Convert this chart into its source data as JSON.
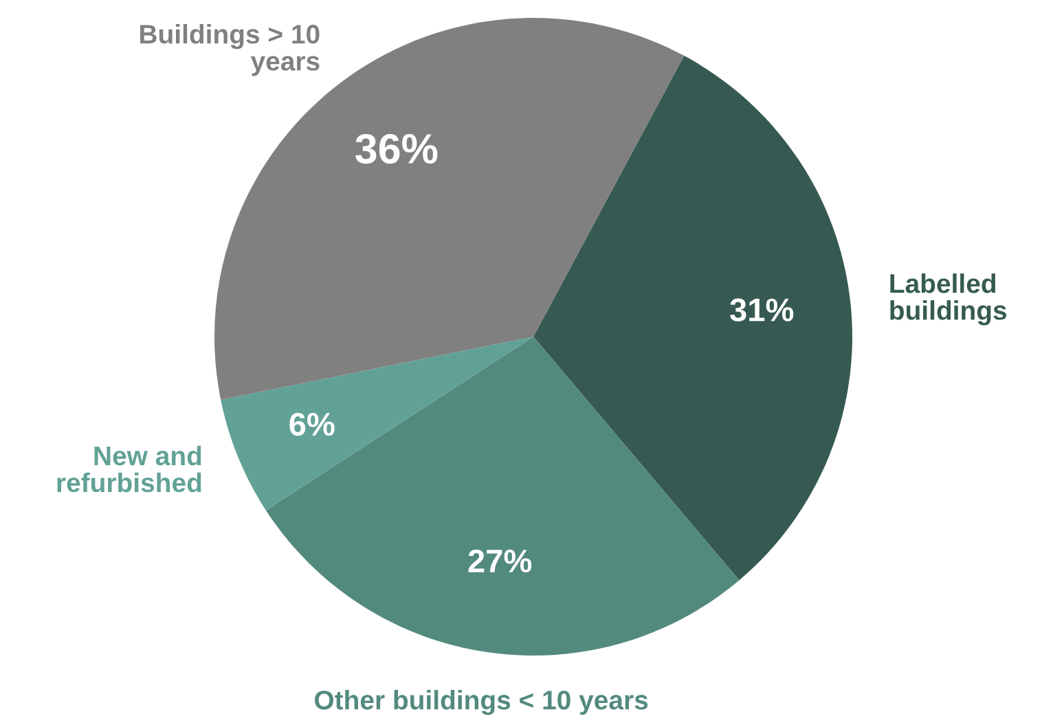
{
  "chart_data": {
    "type": "pie",
    "categories": [
      "Labelled\nbuildings",
      "Other buildings < 10 years",
      "New and\nrefurbished",
      "Buildings > 10\nyears"
    ],
    "values": [
      31,
      27,
      6,
      36
    ],
    "colors": [
      "#365a52",
      "#538a7e",
      "#62a196",
      "#808080"
    ],
    "value_labels": [
      "31%",
      "27%",
      "6%",
      "36%"
    ]
  }
}
